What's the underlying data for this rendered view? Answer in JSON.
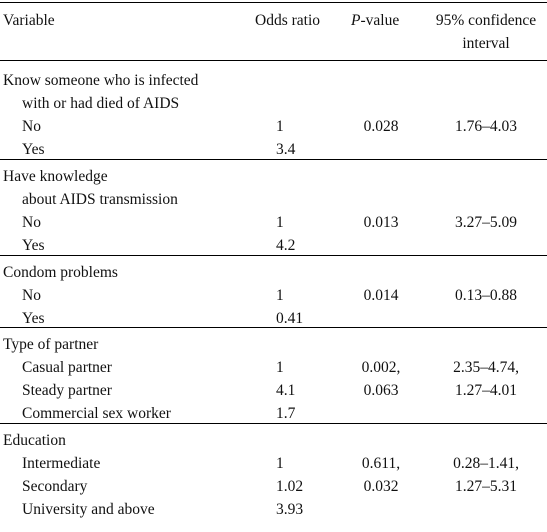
{
  "table": {
    "headers": {
      "variable": "Variable",
      "odds_ratio": "Odds ratio",
      "p_value_italic": "P",
      "p_value_rest": "-value",
      "ci_line1": "95% confidence",
      "ci_line2": "interval"
    },
    "sections": [
      {
        "title_lines": [
          "Know someone who is infected",
          "with or had died of AIDS"
        ],
        "rows": [
          {
            "label": "No",
            "odds": "1",
            "p": "0.028",
            "ci": "1.76–4.03"
          },
          {
            "label": "Yes",
            "odds": "3.4",
            "p": "",
            "ci": ""
          }
        ]
      },
      {
        "title_lines": [
          "Have knowledge",
          "about AIDS transmission"
        ],
        "rows": [
          {
            "label": "No",
            "odds": "1",
            "p": "0.013",
            "ci": "3.27–5.09"
          },
          {
            "label": "Yes",
            "odds": "4.2",
            "p": "",
            "ci": ""
          }
        ]
      },
      {
        "title_lines": [
          "Condom problems"
        ],
        "rows": [
          {
            "label": "No",
            "odds": "1",
            "p": "0.014",
            "ci": "0.13–0.88"
          },
          {
            "label": "Yes",
            "odds": "0.41",
            "p": "",
            "ci": ""
          }
        ]
      },
      {
        "title_lines": [
          "Type of partner"
        ],
        "rows": [
          {
            "label": "Casual partner",
            "odds": "1",
            "p": "0.002,",
            "ci": "2.35–4.74,"
          },
          {
            "label": "Steady partner",
            "odds": "4.1",
            "p": "0.063",
            "ci": "1.27–4.01"
          },
          {
            "label": "Commercial sex worker",
            "odds": "1.7",
            "p": "",
            "ci": ""
          }
        ]
      },
      {
        "title_lines": [
          "Education"
        ],
        "rows": [
          {
            "label": "Intermediate",
            "odds": "1",
            "p": "0.611,",
            "ci": "0.28–1.41,"
          },
          {
            "label": "Secondary",
            "odds": "1.02",
            "p": "0.032",
            "ci": "1.27–5.31"
          },
          {
            "label": "University and above",
            "odds": "3.93",
            "p": "",
            "ci": ""
          }
        ]
      }
    ]
  }
}
